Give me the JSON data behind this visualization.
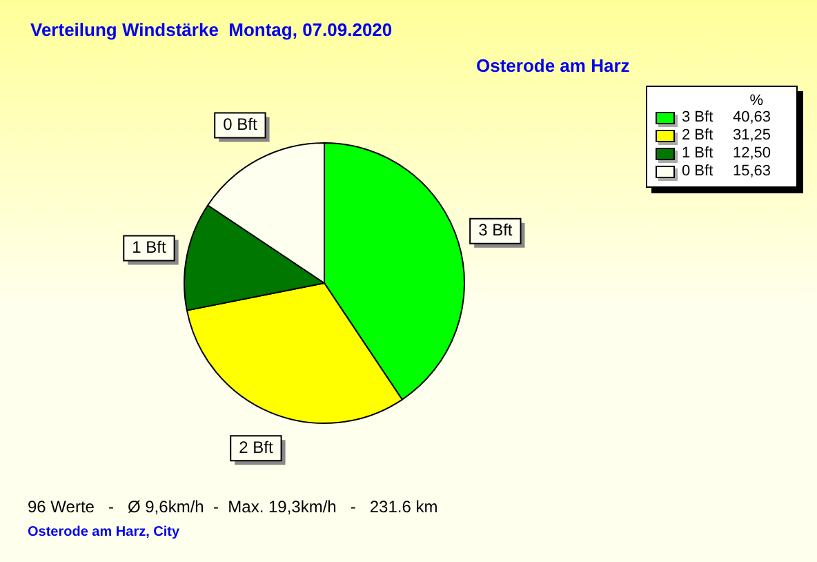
{
  "chart_data": {
    "type": "pie",
    "title": "Verteilung Windstärke  Montag, 07.09.2020",
    "subtitle": "Osterode am Harz",
    "legend_title": "%",
    "categories": [
      "3 Bft",
      "2 Bft",
      "1 Bft",
      "0 Bft"
    ],
    "values": [
      40.63,
      31.25,
      12.5,
      15.63
    ],
    "value_labels": [
      "40,63",
      "31,25",
      "12,50",
      "15,63"
    ],
    "colors": [
      "#00ff00",
      "#ffff00",
      "#007800",
      "#fffff0"
    ],
    "legend": "top right",
    "annotations": [
      "96 Werte   -   Ø 9,6km/h  -  Max. 19,3km/h   -   231.6 km",
      "Osterode am Harz, City"
    ]
  }
}
